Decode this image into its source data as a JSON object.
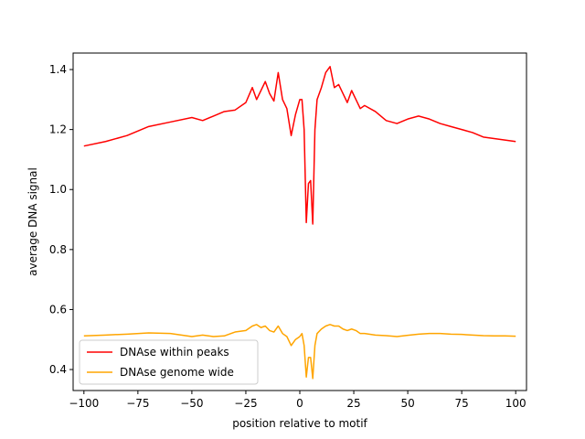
{
  "chart_data": {
    "type": "line",
    "title": "",
    "xlabel": "position relative to motif",
    "ylabel": "average DNA signal",
    "xlim": [
      -105,
      105
    ],
    "ylim": [
      0.33,
      1.455
    ],
    "xticks": [
      -100,
      -75,
      -50,
      -25,
      0,
      25,
      50,
      75,
      100
    ],
    "yticks": [
      0.4,
      0.6,
      0.8,
      1.0,
      1.2,
      1.4
    ],
    "ytick_labels": [
      "0.4",
      "0.6",
      "0.8",
      "1.0",
      "1.2",
      "1.4"
    ],
    "grid": false,
    "legend_position": "lower-left",
    "x": [
      -100,
      -90,
      -80,
      -70,
      -60,
      -50,
      -45,
      -40,
      -35,
      -30,
      -25,
      -22,
      -20,
      -18,
      -16,
      -14,
      -12,
      -10,
      -8,
      -6,
      -4,
      -2,
      0,
      1,
      2,
      3,
      4,
      5,
      6,
      7,
      8,
      10,
      12,
      14,
      16,
      18,
      20,
      22,
      24,
      26,
      28,
      30,
      35,
      40,
      45,
      50,
      55,
      60,
      65,
      70,
      75,
      80,
      85,
      90,
      95,
      100
    ],
    "series": [
      {
        "name": "DNAse within peaks",
        "color": "#ff0000",
        "values": [
          1.145,
          1.16,
          1.18,
          1.21,
          1.225,
          1.24,
          1.23,
          1.245,
          1.26,
          1.265,
          1.29,
          1.34,
          1.3,
          1.33,
          1.36,
          1.32,
          1.295,
          1.39,
          1.3,
          1.27,
          1.18,
          1.25,
          1.3,
          1.3,
          1.2,
          0.89,
          1.02,
          1.03,
          0.885,
          1.2,
          1.3,
          1.34,
          1.39,
          1.41,
          1.34,
          1.35,
          1.32,
          1.29,
          1.33,
          1.3,
          1.27,
          1.28,
          1.26,
          1.23,
          1.22,
          1.235,
          1.245,
          1.235,
          1.22,
          1.21,
          1.2,
          1.19,
          1.175,
          1.17,
          1.165,
          1.16
        ]
      },
      {
        "name": "DNAse genome wide",
        "color": "#ffa500",
        "values": [
          0.512,
          0.515,
          0.518,
          0.522,
          0.52,
          0.51,
          0.515,
          0.51,
          0.512,
          0.525,
          0.53,
          0.545,
          0.55,
          0.54,
          0.545,
          0.53,
          0.525,
          0.545,
          0.52,
          0.51,
          0.48,
          0.5,
          0.51,
          0.52,
          0.48,
          0.375,
          0.44,
          0.44,
          0.37,
          0.48,
          0.52,
          0.535,
          0.545,
          0.55,
          0.545,
          0.545,
          0.535,
          0.53,
          0.535,
          0.53,
          0.52,
          0.52,
          0.515,
          0.513,
          0.51,
          0.514,
          0.518,
          0.52,
          0.52,
          0.518,
          0.517,
          0.515,
          0.513,
          0.512,
          0.512,
          0.511
        ]
      }
    ]
  },
  "colors": {
    "peaks": "#ff0000",
    "genome_wide": "#ffa500",
    "axes": "#000000",
    "background": "#ffffff"
  }
}
